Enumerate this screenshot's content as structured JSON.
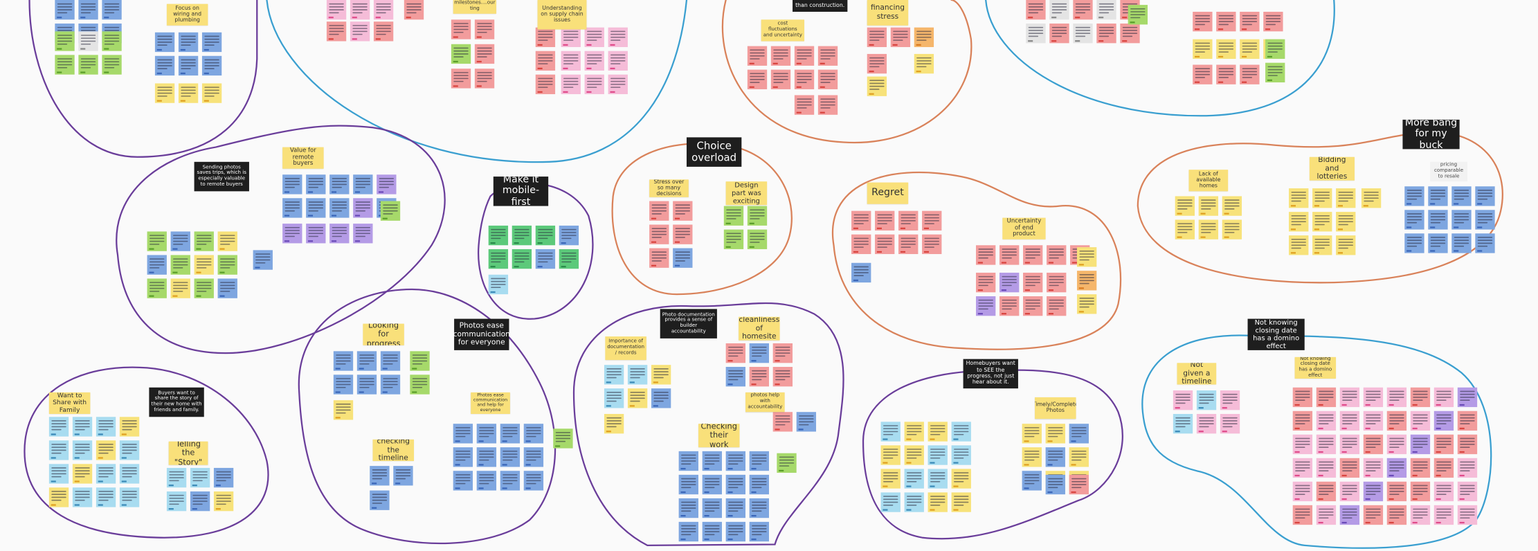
{
  "cards": [
    "Focus on wiring and plumbing",
    "milestones....our ting",
    "Understanding on supply chain issues",
    "than construction.",
    "financing stress",
    "cost fluctuations and uncertainty",
    "Sending photos saves trips, which is especially valuable to remote buyers",
    "Value for remote buyers",
    "Make it mobile-first",
    "Choice overload",
    "Stress over so many decisions",
    "Design part was exciting",
    "Regret",
    "Uncertainty of end product",
    "Lack of available homes",
    "Bidding and lotteries",
    "pricing comparable to resale",
    "More bang for my buck",
    "Looking for progress",
    "Photos ease communication for everyone",
    "Photo documentation provides a sense of builder accountability",
    "cleanliness of homesite",
    "Importance of documentation / records",
    "photos help with accountability",
    "Checking their work",
    "Photos ease communication and help for everyone",
    "checking the timeline",
    "Want to Share with Family",
    "Buyers want to share the story of their new home with friends and family.",
    "Telling the \"Story\"",
    "Homebuyers want to SEE the progress, not just hear about it.",
    "Timely/Complete Photos",
    "Not knowing closing date has a domino effect",
    "Not given a timeline",
    "Not knowing closing date has a domino effect"
  ]
}
